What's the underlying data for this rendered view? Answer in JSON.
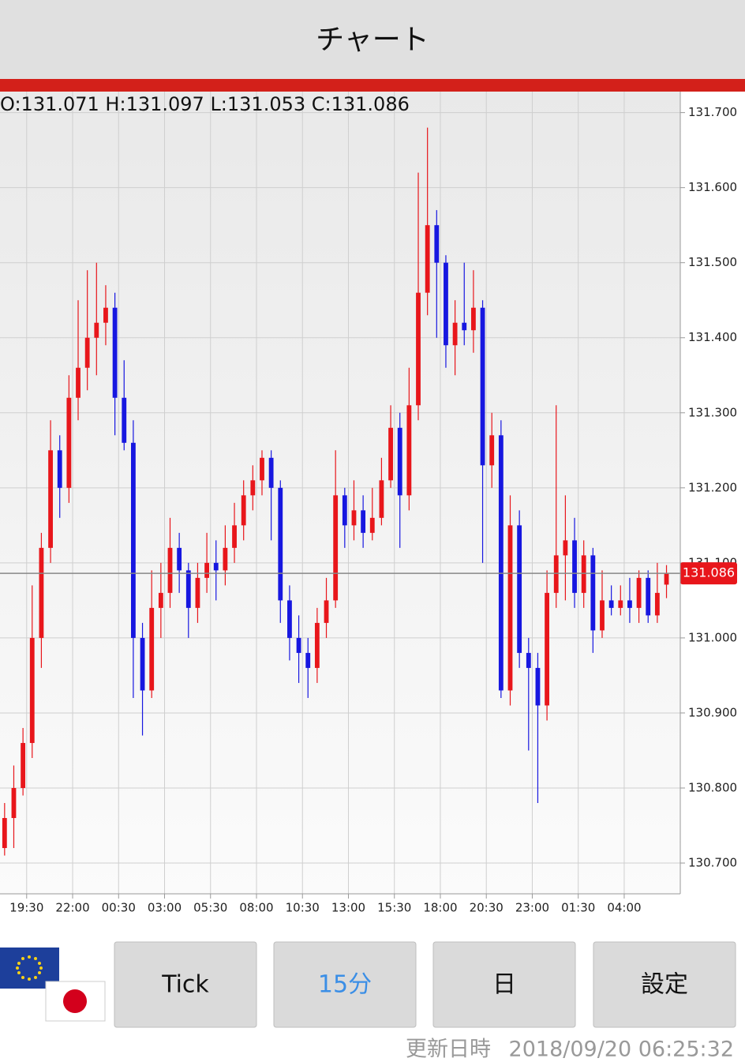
{
  "header": {
    "title": "チャート"
  },
  "chart_data": {
    "type": "candlestick",
    "ohlc_label": "O:131.071 H:131.097 L:131.053 C:131.086",
    "up_color": "#e8161b",
    "down_color": "#1717e0",
    "open": [
      130.72,
      130.76,
      130.8,
      130.86,
      131.0,
      131.12,
      131.25,
      131.2,
      131.32,
      131.36,
      131.4,
      131.42,
      131.44,
      131.32,
      131.26,
      131.0,
      130.93,
      131.04,
      131.06,
      131.12,
      131.09,
      131.04,
      131.08,
      131.1,
      131.09,
      131.12,
      131.15,
      131.19,
      131.21,
      131.24,
      131.2,
      131.05,
      131.0,
      130.98,
      130.96,
      131.02,
      131.05,
      131.19,
      131.15,
      131.17,
      131.14,
      131.16,
      131.21,
      131.28,
      131.19,
      131.31,
      131.46,
      131.55,
      131.5,
      131.39,
      131.42,
      131.41,
      131.44,
      131.23,
      131.27,
      130.93,
      131.15,
      130.98,
      130.96,
      130.91,
      131.06,
      131.11,
      131.13,
      131.06,
      131.11,
      131.01,
      131.05,
      131.04,
      131.05,
      131.04,
      131.08,
      131.03,
      131.071
    ],
    "high": [
      130.78,
      130.83,
      130.88,
      131.07,
      131.14,
      131.29,
      131.27,
      131.35,
      131.45,
      131.49,
      131.5,
      131.47,
      131.46,
      131.37,
      131.29,
      131.02,
      131.09,
      131.1,
      131.16,
      131.14,
      131.1,
      131.1,
      131.14,
      131.13,
      131.15,
      131.18,
      131.21,
      131.23,
      131.25,
      131.25,
      131.21,
      131.07,
      131.03,
      131.0,
      131.04,
      131.08,
      131.25,
      131.2,
      131.21,
      131.19,
      131.2,
      131.24,
      131.31,
      131.3,
      131.36,
      131.62,
      131.68,
      131.57,
      131.51,
      131.45,
      131.5,
      131.49,
      131.45,
      131.3,
      131.29,
      131.19,
      131.17,
      131.0,
      130.98,
      131.09,
      131.31,
      131.19,
      131.16,
      131.13,
      131.12,
      131.09,
      131.07,
      131.07,
      131.08,
      131.09,
      131.09,
      131.1,
      131.097
    ],
    "low": [
      130.71,
      130.72,
      130.79,
      130.84,
      130.96,
      131.1,
      131.16,
      131.18,
      131.29,
      131.33,
      131.35,
      131.39,
      131.27,
      131.25,
      130.92,
      130.87,
      130.92,
      131.0,
      131.04,
      131.06,
      131.0,
      131.02,
      131.06,
      131.05,
      131.07,
      131.1,
      131.13,
      131.17,
      131.19,
      131.13,
      131.02,
      130.97,
      130.94,
      130.92,
      130.94,
      131.0,
      131.04,
      131.12,
      131.13,
      131.12,
      131.13,
      131.15,
      131.2,
      131.12,
      131.17,
      131.29,
      131.43,
      131.4,
      131.36,
      131.35,
      131.39,
      131.38,
      131.1,
      131.2,
      130.92,
      130.91,
      130.96,
      130.85,
      130.78,
      130.89,
      131.04,
      131.05,
      131.04,
      131.04,
      130.98,
      131.0,
      131.03,
      131.03,
      131.02,
      131.02,
      131.02,
      131.02,
      131.053
    ],
    "close": [
      130.76,
      130.8,
      130.86,
      131.0,
      131.12,
      131.25,
      131.2,
      131.32,
      131.36,
      131.4,
      131.42,
      131.44,
      131.32,
      131.26,
      131.0,
      130.93,
      131.04,
      131.06,
      131.12,
      131.09,
      131.04,
      131.08,
      131.1,
      131.09,
      131.12,
      131.15,
      131.19,
      131.21,
      131.24,
      131.2,
      131.05,
      131.0,
      130.98,
      130.96,
      131.02,
      131.05,
      131.19,
      131.15,
      131.17,
      131.14,
      131.16,
      131.21,
      131.28,
      131.19,
      131.31,
      131.46,
      131.55,
      131.5,
      131.39,
      131.42,
      131.41,
      131.44,
      131.23,
      131.27,
      130.93,
      131.15,
      130.98,
      130.96,
      130.91,
      131.06,
      131.11,
      131.13,
      131.06,
      131.11,
      131.01,
      131.05,
      131.04,
      131.05,
      131.04,
      131.08,
      131.03,
      131.06,
      131.086
    ],
    "current_price": 131.086,
    "current_color": "#e8161b",
    "xlim": [
      -0.5,
      73.5
    ],
    "xticks": [
      {
        "value": 2.4,
        "label": "19:30"
      },
      {
        "value": 7.4,
        "label": "22:00"
      },
      {
        "value": 12.4,
        "label": "00:30"
      },
      {
        "value": 17.4,
        "label": "03:00"
      },
      {
        "value": 22.4,
        "label": "05:30"
      },
      {
        "value": 27.4,
        "label": "08:00"
      },
      {
        "value": 32.4,
        "label": "10:30"
      },
      {
        "value": 37.4,
        "label": "13:00"
      },
      {
        "value": 42.4,
        "label": "15:30"
      },
      {
        "value": 47.4,
        "label": "18:00"
      },
      {
        "value": 52.4,
        "label": "20:30"
      },
      {
        "value": 57.4,
        "label": "23:00"
      },
      {
        "value": 62.4,
        "label": "01:30"
      },
      {
        "value": 67.4,
        "label": "04:00"
      }
    ],
    "ylim": [
      130.659,
      131.728
    ],
    "yticks": [
      {
        "value": 130.7,
        "label": "130.700"
      },
      {
        "value": 130.8,
        "label": "130.800"
      },
      {
        "value": 130.9,
        "label": "130.900"
      },
      {
        "value": 131.0,
        "label": "131.000"
      },
      {
        "value": 131.1,
        "label": "131.100"
      },
      {
        "value": 131.2,
        "label": "131.200"
      },
      {
        "value": 131.3,
        "label": "131.300"
      },
      {
        "value": 131.4,
        "label": "131.400"
      },
      {
        "value": 131.5,
        "label": "131.500"
      },
      {
        "value": 131.6,
        "label": "131.600"
      },
      {
        "value": 131.7,
        "label": "131.700"
      }
    ],
    "grid": true
  },
  "buttons": [
    "Tick",
    "15分",
    "日",
    "設定"
  ],
  "footer": {
    "updated_label": "更新日時",
    "updated_at": "2018/09/20 06:25:32"
  }
}
